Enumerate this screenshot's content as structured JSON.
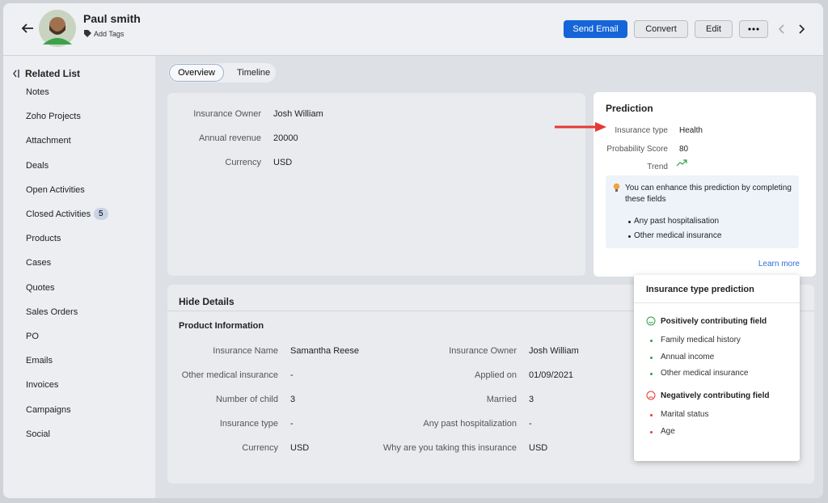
{
  "header": {
    "name": "Paul smith",
    "add_tags": "Add Tags",
    "buttons": [
      "Send Email",
      "Convert",
      "Edit"
    ]
  },
  "sidebar": {
    "title": "Related List",
    "items": [
      {
        "label": "Notes"
      },
      {
        "label": "Zoho Projects"
      },
      {
        "label": "Attachment"
      },
      {
        "label": "Deals"
      },
      {
        "label": "Open Activities"
      },
      {
        "label": "Closed Activities",
        "badge": 5
      },
      {
        "label": "Products"
      },
      {
        "label": "Cases"
      },
      {
        "label": "Quotes"
      },
      {
        "label": "Sales Orders"
      },
      {
        "label": "PO"
      },
      {
        "label": "Emails"
      },
      {
        "label": "Invoices"
      },
      {
        "label": "Campaigns"
      },
      {
        "label": "Social"
      }
    ]
  },
  "tabs": [
    "Overview",
    "Timeline"
  ],
  "summary": {
    "rows": [
      [
        "Insurance Owner",
        "Josh William"
      ],
      [
        "Annual revenue",
        "20000"
      ],
      [
        "Currency",
        "USD"
      ]
    ]
  },
  "details": {
    "title": "Hide Details",
    "section": "Product Information",
    "rows": [
      [
        "Insurance Name",
        "Samantha Reese",
        "Insurance Owner",
        "Josh William"
      ],
      [
        "Other medical insurance",
        "-",
        "Applied on",
        "01/09/2021"
      ],
      [
        "Number of child",
        "3",
        "Married",
        "3"
      ],
      [
        "Insurance type",
        "-",
        "Any past hospitalization",
        "-"
      ],
      [
        "Currency",
        "USD",
        "Why are you taking this insurance",
        "USD"
      ]
    ]
  },
  "prediction": {
    "title": "Prediction",
    "rows": [
      [
        "Insurance type",
        "Health"
      ],
      [
        "Probability Score",
        "80"
      ],
      [
        "Trend",
        ""
      ]
    ],
    "tip": [
      "You can enhance this prediction by completing",
      "these fields"
    ],
    "tip_items": [
      "Any past hospitalisation",
      "Other medical insurance"
    ],
    "link": "Learn more"
  },
  "popup": {
    "title": "Insurance type prediction",
    "positive": {
      "title": "Positively contributing field",
      "items": [
        "Family medical history",
        "Annual income",
        "Other medical insurance"
      ]
    },
    "negative": {
      "title": "Negatively contributing field",
      "items": [
        "Marital status",
        "Age"
      ]
    }
  }
}
